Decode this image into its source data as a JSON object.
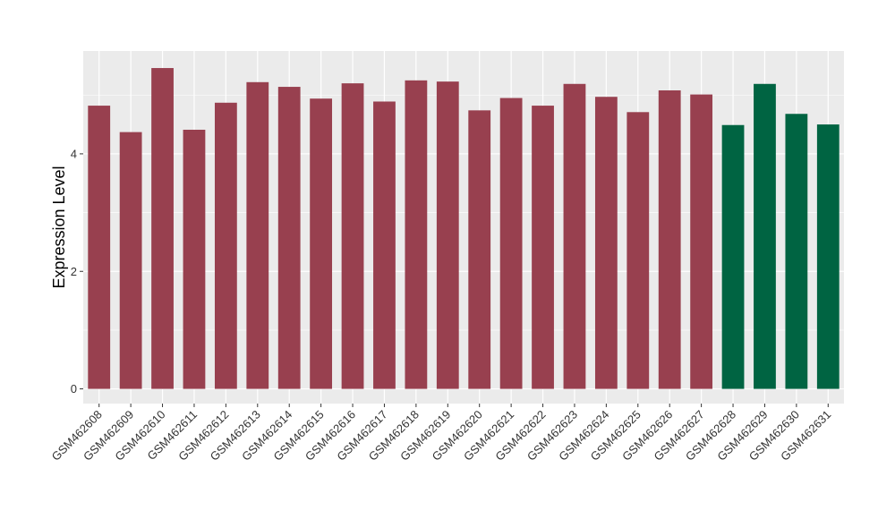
{
  "chart_data": {
    "type": "bar",
    "ylabel": "Expression Level",
    "xlabel": "",
    "ylim": [
      -0.25,
      5.75
    ],
    "yticks": [
      0,
      2,
      4
    ],
    "grid": true,
    "categories": [
      "GSM462608",
      "GSM462609",
      "GSM462610",
      "GSM462611",
      "GSM462612",
      "GSM462613",
      "GSM462614",
      "GSM462615",
      "GSM462616",
      "GSM462617",
      "GSM462618",
      "GSM462619",
      "GSM462620",
      "GSM462621",
      "GSM462622",
      "GSM462623",
      "GSM462624",
      "GSM462625",
      "GSM462626",
      "GSM462627",
      "GSM462628",
      "GSM462629",
      "GSM462630",
      "GSM462631"
    ],
    "values": [
      4.82,
      4.37,
      5.46,
      4.41,
      4.87,
      5.22,
      5.14,
      4.94,
      5.2,
      4.89,
      5.25,
      5.23,
      4.74,
      4.95,
      4.82,
      5.19,
      4.97,
      4.71,
      5.08,
      5.01,
      4.49,
      5.19,
      4.68,
      4.5
    ],
    "groups": [
      0,
      0,
      0,
      0,
      0,
      0,
      0,
      0,
      0,
      0,
      0,
      0,
      0,
      0,
      0,
      0,
      0,
      0,
      0,
      0,
      1,
      1,
      1,
      1
    ],
    "group_colors": [
      "#98404F",
      "#006442"
    ],
    "panel_color": "#EBEBEB",
    "grid_color": "#FFFFFF"
  }
}
